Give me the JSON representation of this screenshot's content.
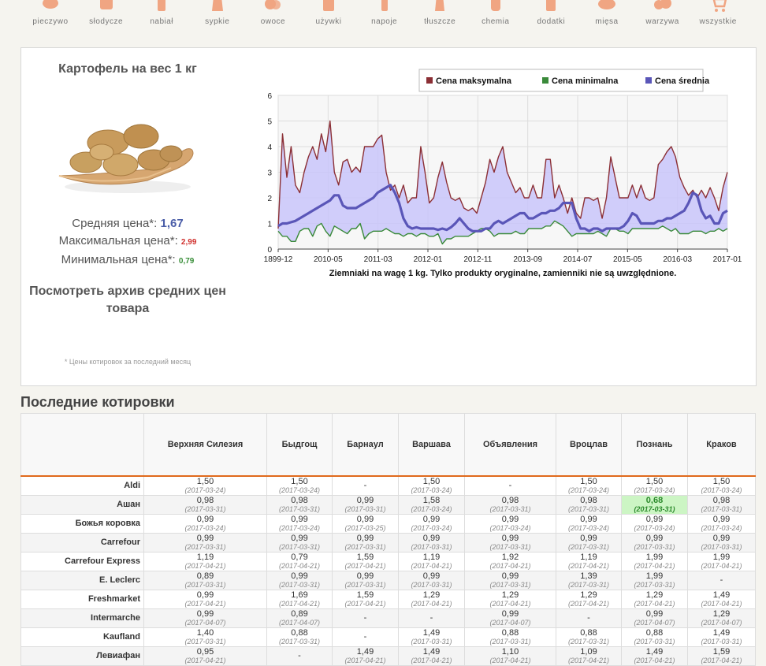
{
  "categories": [
    {
      "label": "pieczywo",
      "icon": "bread-icon"
    },
    {
      "label": "słodycze",
      "icon": "candy-icon"
    },
    {
      "label": "nabiał",
      "icon": "milk-icon"
    },
    {
      "label": "sypkie",
      "icon": "flour-icon"
    },
    {
      "label": "owoce",
      "icon": "fruit-icon"
    },
    {
      "label": "używki",
      "icon": "coffee-icon"
    },
    {
      "label": "napoje",
      "icon": "drink-icon"
    },
    {
      "label": "tłuszcze",
      "icon": "oil-icon"
    },
    {
      "label": "chemia",
      "icon": "chemicals-icon"
    },
    {
      "label": "dodatki",
      "icon": "jar-icon"
    },
    {
      "label": "mięsa",
      "icon": "meat-icon"
    },
    {
      "label": "warzywa",
      "icon": "vegetables-icon"
    },
    {
      "label": "wszystkie",
      "icon": "cart-icon"
    }
  ],
  "product": {
    "title": "Картофель на вес 1 кг",
    "avg_label": "Средняя цена*:",
    "avg_value": "1,67",
    "max_label": "Максимальная цена*:",
    "max_value": "2,99",
    "min_label": "Минимальная цена*:",
    "min_value": "0,79",
    "archive_line1": "Посмотреть архив средних цен",
    "archive_line2": "товара",
    "note": "* Цены котировок за последний месяц",
    "image_icon": "potatoes-on-board-icon"
  },
  "colors": {
    "accent": "#e06a1c",
    "max_series": "#8b2f35",
    "min_series": "#3a8a3a",
    "avg_series": "#5a56b8",
    "area_fill": "#c9c6fa",
    "best_price": "#ccf5c4"
  },
  "chart_data": {
    "type": "line",
    "caption": "Ziemniaki na wagę 1 kg. Tylko produkty oryginalne, zamienniki nie są uwzględnione.",
    "x_tick_labels": [
      "1899-12",
      "2010-05",
      "2011-03",
      "2012-01",
      "2012-11",
      "2013-09",
      "2014-07",
      "2015-05",
      "2016-03",
      "2017-01"
    ],
    "ylim": [
      0,
      6
    ],
    "y_ticks": [
      0,
      1,
      2,
      3,
      4,
      5,
      6
    ],
    "grid": true,
    "legend_position": "top",
    "series": [
      {
        "name": "Cena maksymalna",
        "values": [
          0.8,
          4.5,
          2.8,
          4.0,
          2.5,
          2.2,
          3.0,
          3.6,
          4.0,
          3.5,
          4.5,
          3.8,
          5.0,
          3.0,
          2.5,
          3.4,
          3.5,
          3.0,
          3.2,
          3.0,
          4.0,
          4.0,
          4.0,
          4.3,
          4.45,
          3.0,
          2.3,
          2.5,
          2.0,
          2.5,
          1.8,
          2.0,
          2.0,
          4.0,
          3.0,
          1.8,
          2.0,
          2.8,
          3.4,
          2.6,
          2.0,
          1.9,
          2.0,
          1.6,
          1.5,
          1.6,
          1.4,
          2.0,
          2.6,
          3.5,
          3.0,
          3.6,
          4.0,
          3.0,
          2.6,
          2.2,
          2.4,
          2.0,
          2.0,
          2.5,
          2.0,
          2.0,
          3.5,
          3.5,
          2.0,
          2.5,
          2.0,
          1.4,
          2.0,
          1.4,
          1.2,
          2.0,
          2.0,
          1.9,
          2.0,
          1.2,
          2.0,
          3.6,
          2.8,
          2.0,
          2.0,
          2.0,
          2.5,
          2.0,
          2.5,
          2.0,
          1.9,
          2.0,
          3.3,
          3.5,
          3.8,
          4.0,
          3.6,
          2.8,
          2.4,
          2.1,
          2.3,
          2.0,
          2.3,
          2.0,
          2.4,
          2.0,
          1.5,
          2.4,
          3.0
        ]
      },
      {
        "name": "Cena minimalna",
        "values": [
          0.7,
          0.5,
          0.5,
          0.3,
          0.3,
          0.7,
          0.8,
          0.8,
          0.5,
          0.9,
          1.0,
          0.7,
          0.5,
          0.9,
          0.8,
          0.7,
          0.6,
          0.8,
          0.8,
          1.0,
          0.4,
          0.6,
          0.7,
          0.7,
          0.7,
          0.8,
          0.7,
          0.6,
          0.6,
          0.5,
          0.6,
          0.6,
          0.5,
          0.6,
          0.6,
          0.5,
          0.5,
          0.6,
          0.2,
          0.4,
          0.4,
          0.5,
          0.5,
          0.5,
          0.5,
          0.6,
          0.7,
          0.8,
          0.8,
          0.7,
          0.5,
          0.6,
          0.6,
          0.6,
          0.6,
          0.7,
          0.6,
          0.6,
          0.8,
          0.8,
          0.8,
          0.8,
          0.9,
          0.9,
          1.1,
          1.0,
          0.9,
          0.7,
          0.5,
          0.6,
          0.6,
          0.6,
          0.6,
          0.6,
          0.7,
          0.6,
          0.5,
          0.8,
          0.8,
          0.7,
          0.7,
          0.6,
          0.8,
          0.8,
          0.8,
          0.8,
          0.8,
          0.8,
          0.8,
          0.9,
          0.8,
          0.7,
          0.8,
          0.6,
          0.6,
          0.6,
          0.7,
          0.7,
          0.7,
          0.6,
          0.7,
          0.7,
          0.8,
          0.7,
          0.8
        ]
      },
      {
        "name": "Cena średnia",
        "values": [
          0.9,
          1.0,
          1.0,
          1.05,
          1.1,
          1.2,
          1.3,
          1.4,
          1.5,
          1.6,
          1.7,
          1.8,
          1.9,
          2.1,
          2.1,
          1.7,
          1.6,
          1.6,
          1.6,
          1.7,
          1.8,
          1.9,
          2.0,
          2.2,
          2.3,
          2.4,
          2.5,
          2.2,
          1.8,
          1.2,
          0.9,
          0.8,
          0.85,
          0.8,
          0.8,
          0.8,
          0.8,
          0.75,
          0.8,
          0.75,
          0.85,
          1.0,
          1.2,
          1.0,
          0.8,
          0.7,
          0.7,
          0.7,
          0.8,
          0.8,
          1.0,
          1.1,
          1.0,
          1.1,
          1.2,
          1.3,
          1.4,
          1.4,
          1.2,
          1.2,
          1.3,
          1.4,
          1.4,
          1.5,
          1.5,
          1.6,
          1.8,
          1.8,
          1.8,
          1.2,
          0.8,
          0.8,
          0.7,
          0.8,
          0.8,
          0.7,
          0.8,
          0.8,
          0.8,
          0.8,
          0.9,
          1.1,
          1.4,
          1.3,
          1.0,
          1.0,
          1.0,
          1.0,
          1.1,
          1.1,
          1.2,
          1.2,
          1.3,
          1.4,
          1.5,
          1.8,
          2.2,
          2.1,
          1.5,
          1.2,
          1.3,
          1.0,
          1.0,
          1.4,
          1.5
        ]
      }
    ]
  },
  "quotes": {
    "section_title": "Последние котировки",
    "columns": [
      "Верхняя Силезия",
      "Быдгощ",
      "Барнаул",
      "Варшава",
      "Объявления",
      "Вроцлав",
      "Познань",
      "Краков"
    ],
    "rows": [
      {
        "store": "Aldi",
        "cells": [
          {
            "v": "1,50",
            "d": "(2017-03-24)"
          },
          {
            "v": "1,50",
            "d": "(2017-03-24)"
          },
          {
            "v": "-",
            "d": ""
          },
          {
            "v": "1,50",
            "d": "(2017-03-24)"
          },
          {
            "v": "-",
            "d": ""
          },
          {
            "v": "1,50",
            "d": "(2017-03-24)"
          },
          {
            "v": "1,50",
            "d": "(2017-03-24)"
          },
          {
            "v": "1,50",
            "d": "(2017-03-24)"
          }
        ]
      },
      {
        "store": "Ашан",
        "cells": [
          {
            "v": "0,98",
            "d": "(2017-03-31)"
          },
          {
            "v": "0,98",
            "d": "(2017-03-31)"
          },
          {
            "v": "0,99",
            "d": "(2017-03-31)"
          },
          {
            "v": "1,58",
            "d": "(2017-03-24)"
          },
          {
            "v": "0,98",
            "d": "(2017-03-31)"
          },
          {
            "v": "0,98",
            "d": "(2017-03-31)"
          },
          {
            "v": "0,68",
            "d": "(2017-03-31)",
            "best": true
          },
          {
            "v": "0,98",
            "d": "(2017-03-31)"
          }
        ]
      },
      {
        "store": "Божья коровка",
        "cells": [
          {
            "v": "0,99",
            "d": "(2017-03-24)"
          },
          {
            "v": "0,99",
            "d": "(2017-03-24)"
          },
          {
            "v": "0,99",
            "d": "(2017-03-25)"
          },
          {
            "v": "0,99",
            "d": "(2017-03-24)"
          },
          {
            "v": "0,99",
            "d": "(2017-03-24)"
          },
          {
            "v": "0,99",
            "d": "(2017-03-24)"
          },
          {
            "v": "0,99",
            "d": "(2017-03-24)"
          },
          {
            "v": "0,99",
            "d": "(2017-03-24)"
          }
        ]
      },
      {
        "store": "Carrefour",
        "cells": [
          {
            "v": "0,99",
            "d": "(2017-03-31)"
          },
          {
            "v": "0,99",
            "d": "(2017-03-31)"
          },
          {
            "v": "0,99",
            "d": "(2017-03-31)"
          },
          {
            "v": "0,99",
            "d": "(2017-03-31)"
          },
          {
            "v": "0,99",
            "d": "(2017-03-31)"
          },
          {
            "v": "0,99",
            "d": "(2017-03-31)"
          },
          {
            "v": "0,99",
            "d": "(2017-03-31)"
          },
          {
            "v": "0,99",
            "d": "(2017-03-31)"
          }
        ]
      },
      {
        "store": "Carrefour Express",
        "cells": [
          {
            "v": "1,19",
            "d": "(2017-04-21)"
          },
          {
            "v": "0,79",
            "d": "(2017-04-21)"
          },
          {
            "v": "1,59",
            "d": "(2017-04-21)"
          },
          {
            "v": "1,19",
            "d": "(2017-04-21)"
          },
          {
            "v": "1,92",
            "d": "(2017-04-21)"
          },
          {
            "v": "1,19",
            "d": "(2017-04-21)"
          },
          {
            "v": "1,99",
            "d": "(2017-04-21)"
          },
          {
            "v": "1,99",
            "d": "(2017-04-21)"
          }
        ]
      },
      {
        "store": "E. Leclerc",
        "cells": [
          {
            "v": "0,89",
            "d": "(2017-03-31)"
          },
          {
            "v": "0,99",
            "d": "(2017-03-31)"
          },
          {
            "v": "0,99",
            "d": "(2017-03-31)"
          },
          {
            "v": "0,99",
            "d": "(2017-03-31)"
          },
          {
            "v": "0,99",
            "d": "(2017-03-31)"
          },
          {
            "v": "1,39",
            "d": "(2017-03-31)"
          },
          {
            "v": "1,99",
            "d": "(2017-03-31)"
          },
          {
            "v": "-",
            "d": ""
          }
        ]
      },
      {
        "store": "Freshmarket",
        "cells": [
          {
            "v": "0,99",
            "d": "(2017-04-21)"
          },
          {
            "v": "1,69",
            "d": "(2017-04-21)"
          },
          {
            "v": "1,59",
            "d": "(2017-04-21)"
          },
          {
            "v": "1,29",
            "d": "(2017-04-21)"
          },
          {
            "v": "1,29",
            "d": "(2017-04-21)"
          },
          {
            "v": "1,29",
            "d": "(2017-04-21)"
          },
          {
            "v": "1,29",
            "d": "(2017-04-21)"
          },
          {
            "v": "1,49",
            "d": "(2017-04-21)"
          }
        ]
      },
      {
        "store": "Intermarche",
        "cells": [
          {
            "v": "0,99",
            "d": "(2017-04-07)"
          },
          {
            "v": "0,89",
            "d": "(2017-04-07)"
          },
          {
            "v": "-",
            "d": ""
          },
          {
            "v": "-",
            "d": ""
          },
          {
            "v": "0,99",
            "d": "(2017-04-07)"
          },
          {
            "v": "-",
            "d": ""
          },
          {
            "v": "0,99",
            "d": "(2017-04-07)"
          },
          {
            "v": "1,29",
            "d": "(2017-04-07)"
          }
        ]
      },
      {
        "store": "Kaufland",
        "cells": [
          {
            "v": "1,40",
            "d": "(2017-03-31)"
          },
          {
            "v": "0,88",
            "d": "(2017-03-31)"
          },
          {
            "v": "-",
            "d": ""
          },
          {
            "v": "1,49",
            "d": "(2017-03-31)"
          },
          {
            "v": "0,88",
            "d": "(2017-03-31)"
          },
          {
            "v": "0,88",
            "d": "(2017-03-31)"
          },
          {
            "v": "0,88",
            "d": "(2017-03-31)"
          },
          {
            "v": "1,49",
            "d": "(2017-03-31)"
          }
        ]
      },
      {
        "store": "Левиафан",
        "cells": [
          {
            "v": "0,95",
            "d": "(2017-04-21)"
          },
          {
            "v": "-",
            "d": ""
          },
          {
            "v": "1,49",
            "d": "(2017-04-21)"
          },
          {
            "v": "1,49",
            "d": "(2017-04-21)"
          },
          {
            "v": "1,10",
            "d": "(2017-04-21)"
          },
          {
            "v": "1,09",
            "d": "(2017-04-21)"
          },
          {
            "v": "1,49",
            "d": "(2017-04-21)"
          },
          {
            "v": "1,59",
            "d": "(2017-04-21)"
          }
        ]
      }
    ]
  }
}
